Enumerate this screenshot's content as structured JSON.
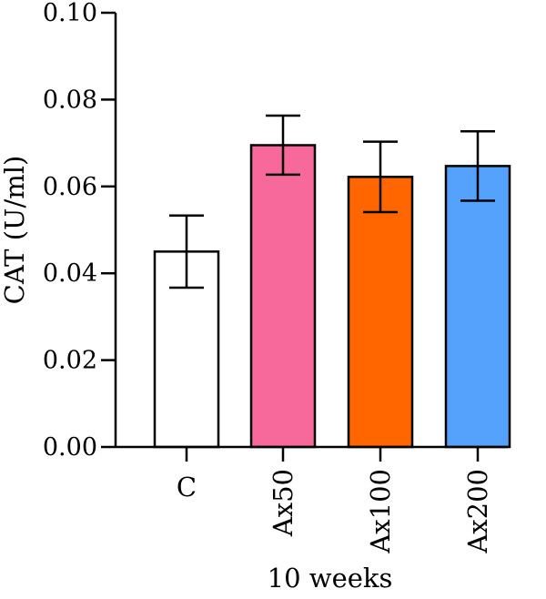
{
  "chart_data": {
    "type": "bar",
    "categories": [
      "C",
      "Ax50",
      "Ax100",
      "Ax200"
    ],
    "values": [
      0.045,
      0.0695,
      0.0622,
      0.0647
    ],
    "error": [
      0.0083,
      0.0068,
      0.0081,
      0.008
    ],
    "colors": [
      "#ffffff",
      "#f7699a",
      "#ff6600",
      "#55a2fd"
    ],
    "title": "",
    "xlabel": "10 weeks",
    "ylabel": "CAT (U/ml)",
    "ylim": [
      0,
      0.1
    ],
    "yticks": [
      "0.00",
      "0.02",
      "0.04",
      "0.06",
      "0.08",
      "0.10"
    ],
    "grid": false
  }
}
